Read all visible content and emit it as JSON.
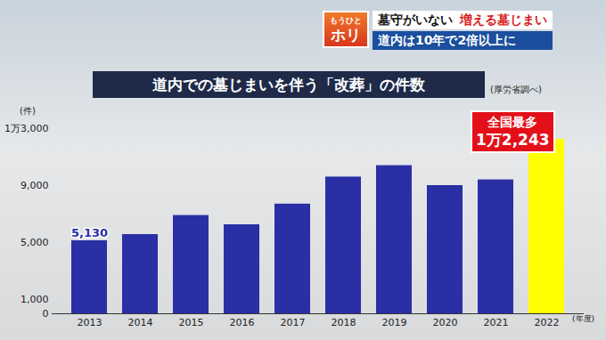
{
  "header": {
    "badge_top": "もうひと",
    "badge": "ホリ",
    "line1": [
      "墓守がいない",
      "増える墓じまい"
    ],
    "line2": "道内は10年で2倍以上に"
  },
  "chart_data": {
    "type": "bar",
    "title": "道内での墓じまいを伴う「改葬」の件数",
    "subtitle": "(厚労省調べ)",
    "y_label": "(件)",
    "x_label": "(年度)",
    "categories": [
      "2013",
      "2014",
      "2015",
      "2016",
      "2017",
      "2018",
      "2019",
      "2020",
      "2021",
      "2022"
    ],
    "values": [
      5130,
      5560,
      6900,
      6250,
      7700,
      9600,
      10400,
      9000,
      9400,
      12243
    ],
    "colors": [
      "#2a2fa6",
      "#2a2fa6",
      "#2a2fa6",
      "#2a2fa6",
      "#2a2fa6",
      "#2a2fa6",
      "#2a2fa6",
      "#2a2fa6",
      "#2a2fa6",
      "#ffff00"
    ],
    "ylim": [
      0,
      13000
    ],
    "yticks": [
      0,
      {
        "value": 1000,
        "label": "1,000"
      },
      {
        "value": 5000,
        "label": "5,000"
      },
      {
        "value": 9000,
        "label": "9,000"
      },
      {
        "value": 13000,
        "label": "1万3,000"
      }
    ],
    "grid": false,
    "annotations": [
      {
        "category": "2013",
        "text": "5,130"
      },
      {
        "category": "2022",
        "text": [
          "全国最多",
          "1万2,243"
        ]
      }
    ]
  }
}
